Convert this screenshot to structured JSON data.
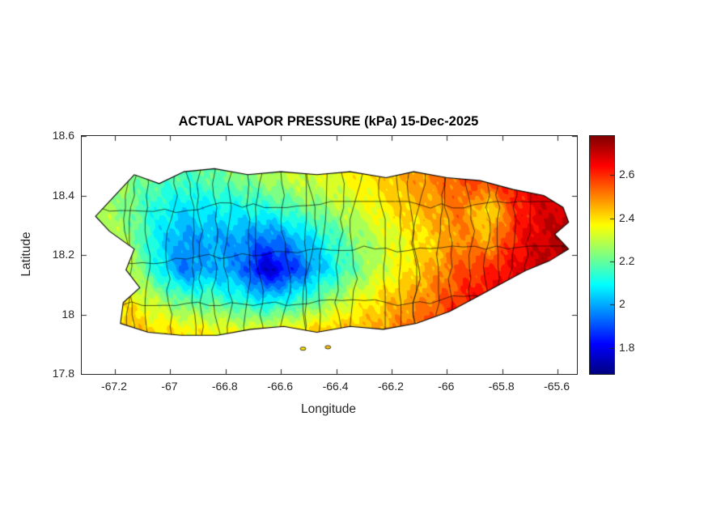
{
  "figure": {
    "title": "ACTUAL VAPOR PRESSURE (kPa) 15-Dec-2025",
    "xlabel": "Longitude",
    "ylabel": "Latitude",
    "background_color": "#ffffff",
    "axis_color": "#262626"
  },
  "colorbar": {
    "colormap": "jet",
    "vmin": 1.68,
    "vmax": 2.78,
    "ticks": [
      1.8,
      2,
      2.2,
      2.4,
      2.6
    ],
    "tick_labels": [
      "1.8",
      "2",
      "2.2",
      "2.4",
      "2.6"
    ]
  },
  "chart_data": {
    "type": "heatmap",
    "title": "ACTUAL VAPOR PRESSURE (kPa) 15-Dec-2025",
    "xlabel": "Longitude",
    "ylabel": "Latitude",
    "region": "Puerto Rico",
    "xlim": [
      -67.32,
      -65.53
    ],
    "ylim": [
      17.8,
      18.6
    ],
    "x_ticks": [
      -67.2,
      -67,
      -66.8,
      -66.6,
      -66.4,
      -66.2,
      -66,
      -65.8,
      -65.6
    ],
    "x_tick_labels": [
      "-67.2",
      "-67",
      "-66.8",
      "-66.6",
      "-66.4",
      "-66.2",
      "-66",
      "-65.8",
      "-65.6"
    ],
    "y_ticks": [
      18.6,
      18.4,
      18.2,
      18,
      17.8
    ],
    "y_tick_labels": [
      "18.6",
      "18.4",
      "18.2",
      "18",
      "17.8"
    ],
    "value_range_kpa": [
      1.68,
      2.78
    ],
    "contour_interval_kpa": 0.05,
    "grid_lons": [
      -67.25,
      -67.15,
      -67.05,
      -66.95,
      -66.85,
      -66.75,
      -66.65,
      -66.55,
      -66.45,
      -66.35,
      -66.25,
      -66.15,
      -66.05,
      -65.95,
      -65.85,
      -65.75,
      -65.65,
      -65.55
    ],
    "grid_lats": [
      18.55,
      18.45,
      18.35,
      18.25,
      18.15,
      18.05,
      17.95
    ],
    "values_kpa": [
      [
        2.28,
        2.26,
        2.22,
        2.22,
        2.24,
        2.28,
        2.3,
        2.32,
        2.34,
        2.38,
        2.42,
        2.46,
        2.5,
        2.55,
        2.58,
        2.62,
        2.68,
        2.7
      ],
      [
        2.3,
        2.24,
        2.18,
        2.16,
        2.18,
        2.22,
        2.26,
        2.3,
        2.32,
        2.36,
        2.4,
        2.45,
        2.5,
        2.55,
        2.58,
        2.64,
        2.7,
        2.72
      ],
      [
        2.28,
        2.22,
        2.12,
        2.06,
        2.08,
        2.1,
        2.12,
        2.18,
        2.24,
        2.3,
        2.36,
        2.42,
        2.46,
        2.52,
        2.38,
        2.6,
        2.68,
        2.72
      ],
      [
        2.3,
        2.26,
        2.08,
        1.98,
        2.0,
        1.98,
        1.92,
        2.0,
        2.1,
        2.22,
        2.3,
        2.36,
        2.42,
        2.5,
        2.46,
        2.62,
        2.7,
        2.74
      ],
      [
        2.34,
        2.3,
        2.12,
        1.94,
        2.02,
        1.96,
        1.74,
        1.88,
        2.04,
        2.18,
        2.3,
        2.38,
        2.46,
        2.56,
        2.6,
        2.66,
        2.72,
        2.74
      ],
      [
        2.4,
        2.38,
        2.28,
        2.18,
        2.18,
        2.12,
        2.06,
        2.12,
        2.22,
        2.32,
        2.4,
        2.46,
        2.52,
        2.6,
        2.66,
        2.7,
        2.72,
        2.74
      ],
      [
        2.44,
        2.44,
        2.4,
        2.38,
        2.36,
        2.34,
        2.34,
        2.38,
        2.42,
        2.44,
        2.46,
        2.52,
        2.56,
        2.62,
        2.66,
        2.7,
        2.72,
        2.72
      ]
    ],
    "coastline_lonlat": [
      [
        -67.22,
        18.38
      ],
      [
        -67.13,
        18.47
      ],
      [
        -67.04,
        18.44
      ],
      [
        -66.95,
        18.48
      ],
      [
        -66.84,
        18.49
      ],
      [
        -66.72,
        18.47
      ],
      [
        -66.6,
        18.48
      ],
      [
        -66.47,
        18.47
      ],
      [
        -66.35,
        18.48
      ],
      [
        -66.22,
        18.46
      ],
      [
        -66.12,
        18.48
      ],
      [
        -66.0,
        18.46
      ],
      [
        -65.88,
        18.45
      ],
      [
        -65.76,
        18.42
      ],
      [
        -65.65,
        18.4
      ],
      [
        -65.58,
        18.36
      ],
      [
        -65.56,
        18.31
      ],
      [
        -65.61,
        18.27
      ],
      [
        -65.56,
        18.22
      ],
      [
        -65.63,
        18.18
      ],
      [
        -65.71,
        18.15
      ],
      [
        -65.79,
        18.11
      ],
      [
        -65.89,
        18.06
      ],
      [
        -65.99,
        18.01
      ],
      [
        -66.11,
        17.97
      ],
      [
        -66.23,
        17.95
      ],
      [
        -66.35,
        17.96
      ],
      [
        -66.47,
        17.94
      ],
      [
        -66.59,
        17.96
      ],
      [
        -66.71,
        17.95
      ],
      [
        -66.83,
        17.93
      ],
      [
        -66.96,
        17.93
      ],
      [
        -67.08,
        17.94
      ],
      [
        -67.18,
        17.97
      ],
      [
        -67.17,
        18.04
      ],
      [
        -67.11,
        18.09
      ],
      [
        -67.16,
        18.15
      ],
      [
        -67.13,
        18.22
      ],
      [
        -67.22,
        18.28
      ],
      [
        -67.27,
        18.33
      ]
    ],
    "islets_lonlat": [
      [
        -66.52,
        17.885
      ],
      [
        -66.43,
        17.89
      ]
    ]
  }
}
